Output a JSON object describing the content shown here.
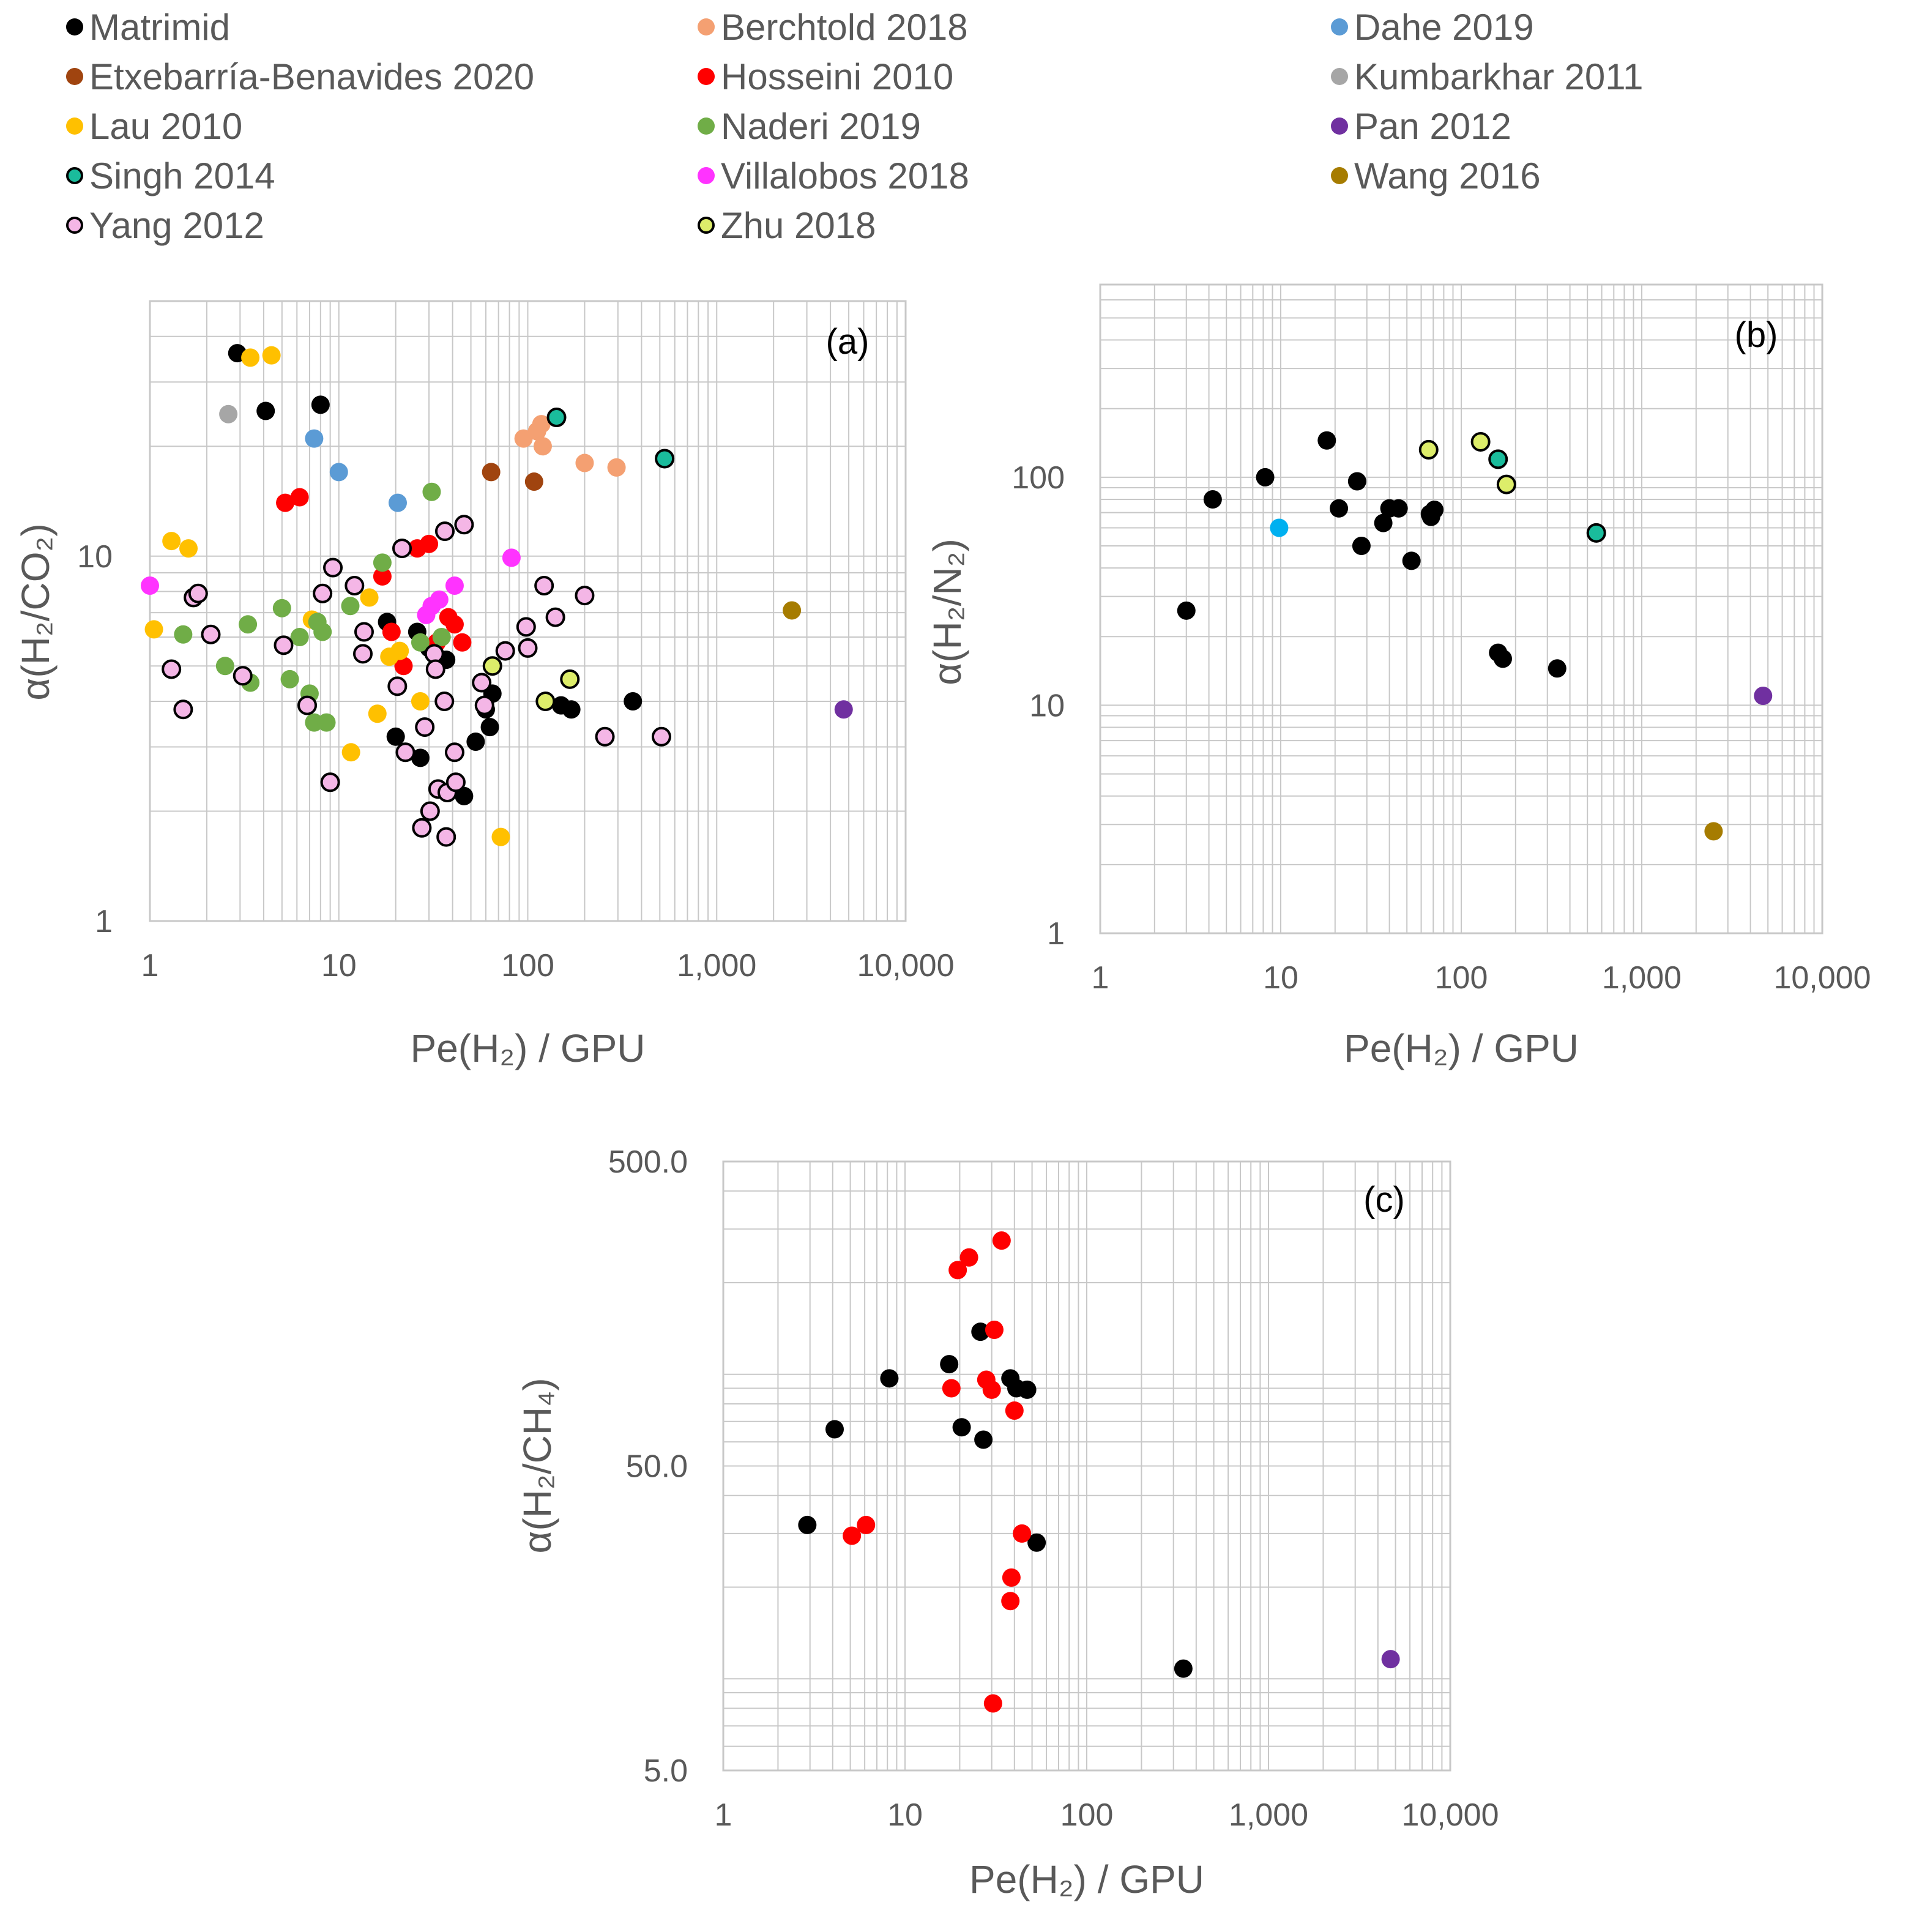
{
  "legend": [
    {
      "name": "Matrimid",
      "color": "#000000",
      "edge": false
    },
    {
      "name": "Berchtold 2018",
      "color": "#F4A072",
      "edge": false
    },
    {
      "name": "Dahe 2019",
      "color": "#5B9BD5",
      "edge": false
    },
    {
      "name": "Etxebarría-Benavides 2020",
      "color": "#A0440F",
      "edge": false
    },
    {
      "name": "Hosseini 2010",
      "color": "#FF0000",
      "edge": false
    },
    {
      "name": "Kumbarkhar 2011",
      "color": "#A6A6A6",
      "edge": false
    },
    {
      "name": "Lau 2010",
      "color": "#FFC000",
      "edge": false
    },
    {
      "name": "Naderi 2019",
      "color": "#70AD47",
      "edge": false
    },
    {
      "name": "Pan 2012",
      "color": "#7030A0",
      "edge": false
    },
    {
      "name": "Singh 2014",
      "color": "#1ABC9C",
      "edge": true
    },
    {
      "name": "Villalobos 2018",
      "color": "#FF33FF",
      "edge": false
    },
    {
      "name": "Wang 2016",
      "color": "#A67C00",
      "edge": false
    },
    {
      "name": "Yang 2012",
      "color": "#F4B6E6",
      "edge": true
    },
    {
      "name": "Zhu 2018",
      "color": "#DDED6A",
      "edge": true
    }
  ],
  "chart_data": [
    {
      "type": "scatter",
      "panel": "(a)",
      "xlabel": "Pe(H₂) / GPU",
      "ylabel": "α(H₂/CO₂)",
      "xscale": "log",
      "yscale": "log",
      "xlim": [
        1,
        10000
      ],
      "ylim": [
        1,
        50
      ],
      "xticks": [
        "1",
        "10",
        "100",
        "1,000",
        "10,000"
      ],
      "yticks": [
        "1",
        "10"
      ],
      "series": [
        {
          "name": "Matrimid",
          "points": [
            [
              2.9,
              36
            ],
            [
              4.1,
              25
            ],
            [
              8,
              26
            ],
            [
              18,
              6.6
            ],
            [
              20,
              3.2
            ],
            [
              26,
              6.2
            ],
            [
              27,
              2.8
            ],
            [
              30,
              5.6
            ],
            [
              37,
              5.2
            ],
            [
              46,
              2.2
            ],
            [
              53,
              3.1
            ],
            [
              60,
              3.8
            ],
            [
              63,
              3.4
            ],
            [
              65,
              4.2
            ],
            [
              150,
              3.9
            ],
            [
              170,
              3.8
            ],
            [
              360,
              4.0
            ]
          ]
        },
        {
          "name": "Berchtold 2018",
          "points": [
            [
              95,
              21
            ],
            [
              112,
              22
            ],
            [
              118,
              23
            ],
            [
              120,
              20
            ],
            [
              200,
              18
            ],
            [
              295,
              17.5
            ]
          ]
        },
        {
          "name": "Dahe 2019",
          "points": [
            [
              7.4,
              21
            ],
            [
              10,
              17
            ],
            [
              20.5,
              14
            ]
          ]
        },
        {
          "name": "Etxebarría-Benavides 2020",
          "points": [
            [
              64,
              17
            ],
            [
              108,
              16
            ]
          ]
        },
        {
          "name": "Hosseini 2010",
          "points": [
            [
              5.2,
              14
            ],
            [
              6.2,
              14.5
            ],
            [
              17,
              8.8
            ],
            [
              19,
              6.2
            ],
            [
              22,
              5.0
            ],
            [
              26,
              10.5
            ],
            [
              30,
              10.8
            ],
            [
              33,
              5.8
            ],
            [
              38,
              6.8
            ],
            [
              41,
              6.5
            ],
            [
              45,
              5.8
            ]
          ]
        },
        {
          "name": "Kumbarkhar 2011",
          "points": [
            [
              2.6,
              24.5
            ]
          ]
        },
        {
          "name": "Lau 2010",
          "points": [
            [
              1.05,
              6.3
            ],
            [
              1.3,
              11
            ],
            [
              1.6,
              10.5
            ],
            [
              3.4,
              35
            ],
            [
              4.4,
              35.5
            ],
            [
              7.2,
              6.7
            ],
            [
              11.6,
              2.9
            ],
            [
              14.5,
              7.7
            ],
            [
              16,
              3.7
            ],
            [
              18.5,
              5.3
            ],
            [
              21,
              5.5
            ],
            [
              27,
              4.0
            ],
            [
              72,
              1.7
            ]
          ]
        },
        {
          "name": "Naderi 2019",
          "points": [
            [
              1.5,
              6.1
            ],
            [
              2.5,
              5.0
            ],
            [
              3.3,
              6.5
            ],
            [
              3.4,
              4.5
            ],
            [
              5,
              7.2
            ],
            [
              5.5,
              4.6
            ],
            [
              6.2,
              6.0
            ],
            [
              7,
              4.2
            ],
            [
              7.4,
              3.5
            ],
            [
              7.7,
              6.6
            ],
            [
              8.2,
              6.2
            ],
            [
              8.6,
              3.5
            ],
            [
              11.5,
              7.3
            ],
            [
              17,
              9.6
            ],
            [
              27,
              5.8
            ],
            [
              31,
              15
            ],
            [
              35,
              6.0
            ]
          ]
        },
        {
          "name": "Pan 2012",
          "points": [
            [
              4700,
              3.8
            ]
          ]
        },
        {
          "name": "Singh 2014",
          "points": [
            [
              142,
              24
            ],
            [
              530,
              18.5
            ]
          ]
        },
        {
          "name": "Villalobos 2018",
          "points": [
            [
              1.0,
              8.3
            ],
            [
              29,
              6.9
            ],
            [
              31,
              7.3
            ],
            [
              34,
              7.6
            ],
            [
              41,
              8.3
            ],
            [
              82,
              9.9
            ]
          ]
        },
        {
          "name": "Wang 2016",
          "points": [
            [
              2500,
              7.1
            ]
          ]
        },
        {
          "name": "Yang 2012",
          "points": [
            [
              1.3,
              4.9
            ],
            [
              1.5,
              3.8
            ],
            [
              1.7,
              7.7
            ],
            [
              1.8,
              7.9
            ],
            [
              2.1,
              6.1
            ],
            [
              3.1,
              4.7
            ],
            [
              5.1,
              5.7
            ],
            [
              6.8,
              3.9
            ],
            [
              8.2,
              7.9
            ],
            [
              9,
              2.4
            ],
            [
              9.3,
              9.3
            ],
            [
              12.1,
              8.3
            ],
            [
              13.4,
              5.4
            ],
            [
              13.6,
              6.2
            ],
            [
              20.4,
              4.4
            ],
            [
              21.6,
              10.5
            ],
            [
              22.5,
              2.9
            ],
            [
              27.5,
              1.8
            ],
            [
              28.5,
              3.4
            ],
            [
              30.4,
              2.0
            ],
            [
              32,
              5.4
            ],
            [
              32.5,
              4.9
            ],
            [
              33.5,
              2.3
            ],
            [
              36.2,
              4.0
            ],
            [
              36.4,
              11.7
            ],
            [
              37.5,
              2.25
            ],
            [
              37,
              1.7
            ],
            [
              41,
              2.9
            ],
            [
              41.6,
              2.4
            ],
            [
              46,
              12.2
            ],
            [
              57,
              4.5
            ],
            [
              59,
              3.9
            ],
            [
              76,
              5.5
            ],
            [
              98,
              6.4
            ],
            [
              100,
              5.6
            ],
            [
              122,
              8.3
            ],
            [
              140,
              6.8
            ],
            [
              200,
              7.8
            ],
            [
              256,
              3.2
            ],
            [
              510,
              3.2
            ]
          ]
        },
        {
          "name": "Zhu 2018",
          "points": [
            [
              65,
              5.0
            ],
            [
              124,
              4.0
            ],
            [
              167,
              4.6
            ]
          ]
        }
      ]
    },
    {
      "type": "scatter",
      "panel": "(b)",
      "xlabel": "Pe(H₂) / GPU",
      "ylabel": "α(H₂/N₂)",
      "xscale": "log",
      "yscale": "log",
      "xlim": [
        1,
        10000
      ],
      "ylim": [
        1,
        700
      ],
      "xticks": [
        "1",
        "10",
        "100",
        "1,000",
        "10,000"
      ],
      "yticks": [
        "1",
        "10",
        "100"
      ],
      "series": [
        {
          "name": "Matrimid",
          "points": [
            [
              3,
              26
            ],
            [
              4.2,
              80
            ],
            [
              8.2,
              100
            ],
            [
              18,
              145
            ],
            [
              21,
              73
            ],
            [
              26.5,
              96
            ],
            [
              28,
              50
            ],
            [
              37,
              63
            ],
            [
              40,
              73
            ],
            [
              45,
              73
            ],
            [
              53,
              43
            ],
            [
              67,
              69
            ],
            [
              68,
              67
            ],
            [
              71,
              72
            ],
            [
              160,
              17
            ],
            [
              170,
              16
            ],
            [
              340,
              14.5
            ]
          ]
        },
        {
          "name": "Dahe 2019",
          "points": [
            [
              9.8,
              60
            ]
          ],
          "color": "#00B0F0"
        },
        {
          "name": "Pan 2012",
          "points": [
            [
              4700,
              11
            ]
          ]
        },
        {
          "name": "Singh 2014",
          "points": [
            [
              160,
              120
            ],
            [
              560,
              57
            ]
          ]
        },
        {
          "name": "Wang 2016",
          "points": [
            [
              2500,
              2.8
            ]
          ]
        },
        {
          "name": "Zhu 2018",
          "points": [
            [
              66,
              132
            ],
            [
              128,
              143
            ],
            [
              178,
              93
            ]
          ]
        }
      ]
    },
    {
      "type": "scatter",
      "panel": "(c)",
      "xlabel": "Pe(H₂) / GPU",
      "ylabel": "α(H₂/CH₄)",
      "xscale": "log",
      "yscale": "log",
      "xlim": [
        1,
        10000
      ],
      "ylim": [
        5,
        500
      ],
      "xticks": [
        "1",
        "10",
        "100",
        "1,000",
        "10,000"
      ],
      "yticks": [
        "5.0",
        "50.0",
        "500.0"
      ],
      "series": [
        {
          "name": "Matrimid",
          "points": [
            [
              2.9,
              32
            ],
            [
              4.1,
              66
            ],
            [
              8.2,
              97
            ],
            [
              17.5,
              108
            ],
            [
              20.5,
              67
            ],
            [
              26,
              138
            ],
            [
              27,
              61
            ],
            [
              38,
              97
            ],
            [
              41,
              90
            ],
            [
              47,
              89
            ],
            [
              53,
              28
            ],
            [
              340,
              10.8
            ]
          ]
        },
        {
          "name": "Hosseini 2010",
          "points": [
            [
              5.1,
              29.5
            ],
            [
              6.1,
              32
            ],
            [
              18,
              90
            ],
            [
              19.5,
              220
            ],
            [
              22.5,
              242
            ],
            [
              28,
              96
            ],
            [
              30,
              89
            ],
            [
              30.5,
              8.3
            ],
            [
              31,
              140
            ],
            [
              34,
              275
            ],
            [
              38,
              18
            ],
            [
              38.5,
              21.5
            ],
            [
              40,
              76
            ],
            [
              44,
              30
            ]
          ]
        },
        {
          "name": "Pan 2012",
          "points": [
            [
              4700,
              11.6
            ]
          ]
        }
      ]
    }
  ]
}
